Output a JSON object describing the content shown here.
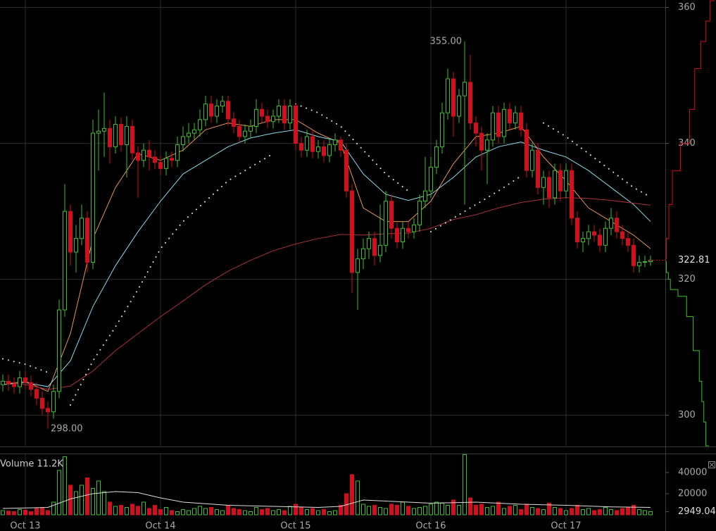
{
  "chart_data": {
    "type": "candlestick",
    "categories": [
      null,
      null,
      null,
      null,
      "Oct 13",
      null,
      null,
      null,
      null,
      null,
      null,
      null,
      null,
      null,
      null,
      null,
      null,
      null,
      null,
      null,
      null,
      null,
      null,
      null,
      null,
      null,
      null,
      null,
      "Oct 14",
      null,
      null,
      null,
      null,
      null,
      null,
      null,
      null,
      null,
      null,
      null,
      null,
      null,
      null,
      null,
      null,
      null,
      null,
      null,
      null,
      null,
      null,
      null,
      "Oct 15",
      null,
      null,
      null,
      null,
      null,
      null,
      null,
      null,
      null,
      null,
      null,
      null,
      null,
      null,
      null,
      null,
      null,
      null,
      null,
      null,
      null,
      null,
      null,
      "Oct 16",
      null,
      null,
      null,
      null,
      null,
      null,
      null,
      null,
      null,
      null,
      null,
      null,
      null,
      null,
      null,
      null,
      null,
      null,
      null,
      null,
      null,
      null,
      null,
      "Oct 17",
      null,
      null,
      null,
      null,
      null,
      null,
      null,
      null,
      null,
      null,
      null,
      null,
      null,
      null,
      null
    ],
    "open": [
      304.5,
      305.0,
      304.6,
      304.2,
      305.5,
      304.8,
      303.8,
      302.5,
      301.0,
      300.5,
      303.5,
      315.5,
      330.0,
      324.0,
      326.0,
      329.0,
      322.5,
      341.5,
      341.8,
      342.2,
      339.5,
      342.8,
      339.8,
      342.5,
      338.6,
      337.5,
      339.0,
      338.0,
      337.2,
      336.3,
      337.8,
      337.5,
      339.8,
      341.0,
      341.5,
      342.0,
      343.5,
      345.8,
      344.0,
      345.5,
      346.2,
      343.6,
      342.5,
      341.0,
      341.8,
      342.5,
      345.0,
      344.0,
      343.2,
      344.0,
      345.5,
      343.0,
      345.5,
      340.0,
      339.0,
      341.0,
      338.8,
      339.5,
      338.2,
      339.8,
      340.5,
      339.0,
      333.0,
      321.0,
      323.0,
      324.5,
      326.0,
      323.5,
      325.0,
      331.5,
      327.5,
      325.5,
      327.5,
      327.0,
      328.0,
      331.5,
      333.0,
      336.5,
      339.5,
      344.5,
      349.5,
      344.0,
      347.0,
      349.0,
      343.0,
      341.5,
      339.0,
      340.5,
      344.5,
      341.0,
      345.0,
      343.0,
      344.5,
      342.0,
      336.0,
      339.0,
      333.5,
      335.0,
      332.0,
      336.0,
      333.0,
      336.0,
      329.0,
      325.5,
      326.0,
      327.0,
      326.5,
      325.0,
      327.5,
      329.0,
      327.0,
      326.0,
      325.0,
      322.0,
      322.5,
      322.6
    ],
    "high": [
      306.0,
      306.0,
      305.6,
      306.5,
      306.5,
      305.8,
      304.8,
      303.5,
      302.0,
      304.5,
      317.0,
      334.0,
      331.0,
      328.0,
      331.0,
      330.0,
      343.5,
      345.0,
      347.5,
      343.5,
      344.0,
      343.8,
      344.0,
      343.5,
      339.6,
      340.0,
      340.5,
      339.0,
      338.2,
      338.8,
      338.8,
      341.0,
      342.5,
      343.0,
      343.0,
      345.0,
      347.0,
      347.0,
      346.5,
      347.0,
      347.0,
      344.6,
      343.5,
      342.8,
      343.5,
      346.5,
      346.0,
      345.0,
      345.0,
      346.5,
      346.5,
      346.5,
      346.0,
      341.0,
      342.0,
      342.0,
      340.5,
      340.5,
      340.8,
      341.5,
      341.0,
      340.0,
      334.0,
      324.5,
      326.0,
      327.0,
      327.0,
      331.0,
      333.0,
      332.5,
      328.5,
      328.5,
      328.5,
      329.0,
      332.5,
      338.0,
      338.0,
      340.5,
      346.0,
      351.0,
      350.5,
      348.0,
      355.0,
      353.0,
      344.0,
      342.5,
      341.5,
      345.5,
      345.5,
      346.0,
      346.0,
      345.5,
      345.5,
      343.0,
      340.0,
      340.0,
      336.0,
      336.0,
      337.0,
      337.0,
      337.0,
      337.0,
      330.0,
      327.0,
      328.0,
      328.0,
      327.5,
      328.5,
      330.5,
      330.0,
      328.0,
      327.0,
      326.0,
      323.5,
      323.5,
      323.5
    ],
    "low": [
      303.5,
      303.6,
      303.2,
      303.2,
      303.8,
      302.8,
      301.5,
      300.0,
      298.0,
      299.5,
      302.5,
      314.5,
      322.0,
      321.0,
      325.0,
      321.0,
      321.5,
      336.0,
      338.0,
      337.0,
      338.5,
      338.8,
      335.0,
      337.6,
      332.0,
      336.5,
      336.0,
      336.2,
      335.3,
      335.3,
      336.5,
      336.5,
      338.8,
      340.0,
      340.5,
      341.0,
      342.5,
      343.0,
      343.0,
      344.5,
      342.6,
      341.5,
      340.0,
      340.0,
      340.8,
      341.5,
      343.0,
      342.2,
      342.2,
      343.0,
      342.0,
      342.0,
      339.0,
      338.0,
      338.0,
      337.8,
      337.8,
      337.2,
      337.2,
      338.8,
      338.0,
      332.0,
      318.0,
      315.5,
      321.5,
      323.0,
      322.0,
      322.5,
      324.0,
      326.0,
      324.5,
      324.5,
      326.0,
      326.0,
      327.0,
      330.5,
      332.0,
      335.5,
      338.5,
      343.5,
      341.0,
      343.0,
      331.0,
      342.0,
      339.5,
      336.0,
      334.0,
      339.5,
      340.0,
      340.0,
      342.0,
      342.0,
      341.0,
      335.0,
      335.0,
      332.5,
      331.0,
      330.5,
      331.0,
      331.5,
      332.0,
      328.0,
      324.5,
      324.0,
      325.0,
      325.5,
      324.0,
      324.0,
      326.5,
      326.0,
      325.0,
      324.0,
      321.0,
      321.0,
      321.8,
      322.0
    ],
    "close": [
      305.0,
      304.6,
      304.2,
      305.5,
      304.8,
      303.8,
      302.5,
      301.0,
      300.5,
      303.5,
      315.5,
      330.0,
      324.0,
      326.0,
      329.0,
      322.5,
      341.5,
      341.8,
      342.2,
      339.5,
      342.8,
      339.8,
      342.5,
      338.6,
      337.5,
      339.0,
      338.0,
      337.2,
      336.3,
      337.8,
      337.5,
      339.8,
      341.0,
      341.5,
      342.0,
      343.5,
      345.8,
      344.0,
      345.5,
      346.2,
      343.6,
      342.5,
      341.0,
      341.8,
      342.5,
      345.0,
      344.0,
      343.2,
      344.0,
      345.5,
      343.0,
      345.5,
      340.0,
      339.0,
      341.0,
      338.8,
      339.5,
      338.2,
      339.8,
      340.5,
      339.0,
      333.0,
      321.0,
      323.0,
      324.5,
      326.0,
      323.5,
      325.0,
      331.5,
      327.5,
      325.5,
      327.5,
      327.0,
      328.0,
      331.5,
      333.0,
      336.5,
      339.5,
      344.5,
      349.5,
      344.0,
      347.0,
      349.0,
      343.0,
      341.5,
      339.0,
      340.5,
      344.5,
      341.0,
      345.0,
      343.0,
      344.5,
      342.0,
      336.0,
      339.0,
      333.5,
      335.0,
      332.0,
      336.0,
      333.0,
      336.0,
      329.0,
      325.5,
      326.0,
      327.0,
      326.5,
      325.0,
      327.5,
      329.0,
      327.0,
      326.0,
      325.0,
      322.0,
      322.5,
      322.6,
      322.81
    ],
    "volume": [
      4000,
      3500,
      3000,
      5000,
      4500,
      3000,
      6000,
      7000,
      4000,
      12000,
      42000,
      55000,
      28000,
      22000,
      28000,
      35000,
      25000,
      32000,
      22000,
      12000,
      8000,
      9000,
      7000,
      10000,
      8000,
      12000,
      6000,
      9000,
      5000,
      7000,
      4000,
      3000,
      5000,
      4000,
      6000,
      8000,
      6000,
      7000,
      5000,
      4000,
      9000,
      6000,
      5000,
      4000,
      3000,
      7000,
      5000,
      6000,
      4000,
      5000,
      4000,
      8000,
      10000,
      7000,
      5000,
      6000,
      4000,
      5000,
      3000,
      4000,
      9000,
      20000,
      38000,
      32000,
      10000,
      8000,
      9000,
      7000,
      6000,
      10000,
      9000,
      12000,
      8000,
      6000,
      7000,
      8000,
      10000,
      12000,
      11000,
      9000,
      14000,
      9000,
      57000,
      16000,
      9000,
      10000,
      7000,
      8000,
      12000,
      6000,
      8000,
      9000,
      5000,
      10000,
      7000,
      6000,
      5000,
      11000,
      7000,
      6000,
      4000,
      6000,
      9000,
      5000,
      6000,
      4000,
      5000,
      7000,
      5000,
      4000,
      6000,
      7000,
      9000,
      5000,
      4000,
      3000
    ],
    "up_color": "#3fbf2a",
    "down_color": "#d0101a",
    "ylim": [
      295.5,
      361.1
    ],
    "yticks": [
      300,
      320,
      340,
      360
    ],
    "grid": true,
    "annotations": [
      {
        "text": "355.00",
        "value": 355
      },
      {
        "text": "298.00",
        "value": 298
      }
    ],
    "overlays": [
      {
        "color": "#e8955a",
        "x": [
          0,
          4,
          8,
          12,
          16,
          20,
          24,
          28,
          32,
          36,
          40,
          44,
          48,
          52,
          56,
          60,
          64,
          68,
          72,
          76,
          80,
          84,
          88,
          92,
          96,
          100,
          104,
          108,
          112,
          115
        ],
        "values": [
          304.5,
          305,
          303.5,
          312,
          326,
          333.5,
          338.5,
          337.5,
          339,
          342,
          343,
          342.5,
          343.5,
          343.5,
          341.5,
          340,
          330.5,
          328.5,
          328.5,
          331.5,
          337,
          341,
          341.5,
          342.5,
          338,
          334.5,
          330.5,
          328.5,
          326.5,
          324.5
        ]
      },
      {
        "color": "#8fd8ea",
        "x": [
          0,
          4,
          8,
          12,
          16,
          20,
          24,
          28,
          32,
          36,
          40,
          44,
          48,
          52,
          56,
          60,
          64,
          68,
          72,
          76,
          80,
          84,
          88,
          92,
          96,
          100,
          104,
          108,
          112,
          115
        ],
        "values": [
          304.5,
          304.8,
          304.2,
          308,
          316,
          322,
          327,
          331.5,
          335.5,
          337.5,
          339.5,
          340.8,
          341.5,
          342,
          341,
          340.3,
          335.5,
          332.5,
          331.6,
          332.5,
          335,
          338,
          339.5,
          340.2,
          339,
          338,
          336,
          333.5,
          331,
          328.5
        ]
      },
      {
        "color": "#a8323e",
        "x": [
          0,
          4,
          8,
          12,
          16,
          20,
          24,
          28,
          32,
          36,
          40,
          44,
          48,
          52,
          56,
          60,
          64,
          68,
          72,
          76,
          80,
          84,
          88,
          92,
          96,
          100,
          104,
          108,
          112,
          115
        ],
        "values": [
          305,
          304.5,
          303.8,
          304.3,
          306.5,
          309.5,
          312,
          314.5,
          316.8,
          319.2,
          321.2,
          322.8,
          324.2,
          325.2,
          326,
          326.6,
          326.5,
          326.7,
          326.8,
          327.5,
          328.8,
          329.5,
          330.5,
          331.3,
          331.8,
          332,
          331.9,
          331.6,
          331.2,
          330.9
        ]
      }
    ],
    "sar": {
      "color": "#dddddd",
      "x": [
        0,
        4,
        8,
        10,
        12,
        16,
        20,
        24,
        28,
        32,
        36,
        40,
        44,
        48,
        50,
        52,
        56,
        60,
        64,
        68,
        72,
        74,
        76,
        80,
        84,
        88,
        92,
        94,
        96,
        100,
        104,
        108,
        112,
        115
      ],
      "values": [
        308.3,
        307.5,
        306.3,
        null,
        301.5,
        308,
        313,
        318.5,
        324.5,
        328.5,
        331.5,
        334.5,
        336.5,
        338.5,
        null,
        345.8,
        344.5,
        342.5,
        339,
        335.5,
        333,
        null,
        327,
        329,
        331,
        333,
        335.2,
        null,
        343,
        341,
        338.5,
        336,
        333.5,
        332.1
      ]
    },
    "volume_panel": {
      "label": "Volume 11.2K",
      "ylim": [
        0,
        57300
      ],
      "yticks": [
        40000,
        20000,
        {
          "value": 2949.04,
          "label": "2949.04"
        }
      ],
      "ma": {
        "color": "#dddddd",
        "x": [
          0,
          8,
          12,
          16,
          20,
          24,
          28,
          32,
          40,
          48,
          56,
          60,
          64,
          68,
          76,
          84,
          92,
          100,
          108,
          115
        ],
        "values": [
          6000,
          7000,
          15000,
          20000,
          22000,
          21000,
          16000,
          12000,
          9000,
          8000,
          7000,
          8000,
          14000,
          13000,
          11000,
          12000,
          10000,
          9000,
          7500,
          7000
        ]
      }
    },
    "depth": {
      "xlim": [
        0,
        100
      ],
      "asks": {
        "color": "#d0101a",
        "prices": [
          322.9,
          326,
          331,
          336,
          340,
          345,
          351,
          355,
          358,
          361
        ],
        "amounts": [
          2,
          7,
          14,
          30,
          48,
          58,
          70,
          80,
          88,
          97
        ]
      },
      "bids": {
        "color": "#3fbf2a",
        "prices": [
          322.7,
          321,
          320,
          318.5,
          317.5,
          314.5,
          309.5,
          305,
          302,
          299,
          295.5
        ],
        "amounts": [
          2,
          6,
          10,
          25,
          42,
          55,
          67,
          72,
          76,
          80,
          86
        ]
      }
    }
  }
}
